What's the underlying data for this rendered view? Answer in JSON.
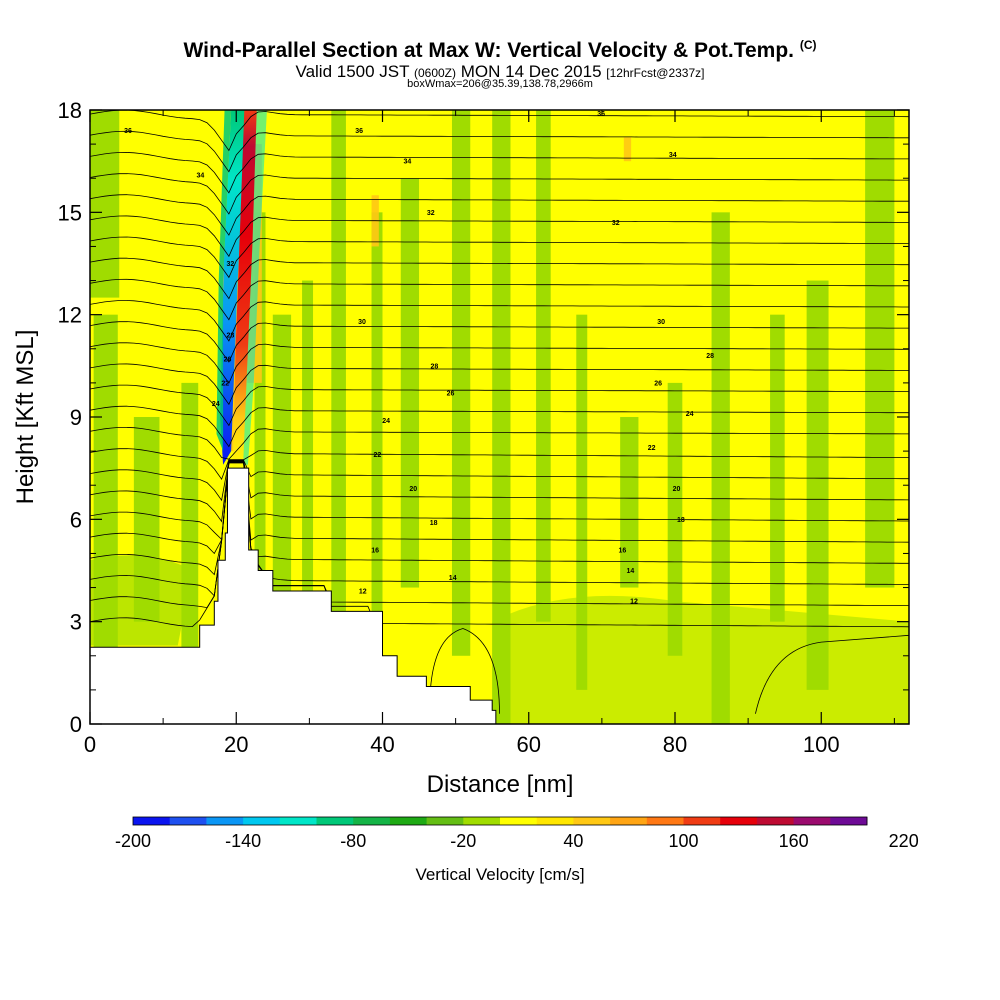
{
  "chart_data": {
    "type": "heatmap",
    "title": "Wind-Parallel Section at Max W: Vertical Velocity & Pot.Temp.",
    "title_mark": "(C)",
    "subtitle_main_a": "Valid 1500 JST",
    "subtitle_small_a": "(0600Z)",
    "subtitle_main_b": "MON 14 Dec 2015",
    "subtitle_small_b": "[12hrFcst@2337z]",
    "subtitle_2": "boxWmax=206@35.39,138.78,2966m",
    "xlabel": "Distance [nm]",
    "ylabel": "Height [Kft MSL]",
    "xlim": [
      0,
      112
    ],
    "ylim": [
      0,
      18
    ],
    "x_ticks": [
      "0",
      "20",
      "40",
      "60",
      "80",
      "100"
    ],
    "y_ticks": [
      "0",
      "3",
      "6",
      "9",
      "12",
      "15",
      "18"
    ],
    "colorbar": {
      "title": "Vertical Velocity [cm/s]",
      "labels": [
        "-200",
        "-140",
        "-80",
        "-20",
        "40",
        "100",
        "160",
        "220"
      ],
      "colors": [
        "#0a14f0",
        "#1e50f0",
        "#0a96f5",
        "#00c8f0",
        "#00e6c8",
        "#00c878",
        "#14b446",
        "#1eaa14",
        "#64be14",
        "#a0dc00",
        "#ffff00",
        "#ffe600",
        "#ffc814",
        "#ffa514",
        "#ff7814",
        "#f03c14",
        "#e6000a",
        "#be0a32",
        "#9b0a6e",
        "#6e0a96"
      ]
    },
    "terrain_profile": [
      [
        0,
        2.25
      ],
      [
        12,
        2.25
      ],
      [
        15,
        2.9
      ],
      [
        17,
        3.6
      ],
      [
        17.5,
        4.8
      ],
      [
        18.5,
        5.6
      ],
      [
        18.8,
        7.5
      ],
      [
        21,
        7.5
      ],
      [
        21.7,
        5.1
      ],
      [
        23,
        4.5
      ],
      [
        25,
        3.9
      ],
      [
        32,
        3.9
      ],
      [
        33,
        3.3
      ],
      [
        38,
        3.3
      ],
      [
        40,
        2.0
      ],
      [
        42,
        1.4
      ],
      [
        46,
        1.1
      ],
      [
        52,
        0.7
      ],
      [
        55,
        0.4
      ],
      [
        55.5,
        0.0
      ]
    ],
    "contour_labels": [
      {
        "x": 5.2,
        "y": 17.4,
        "text": "36"
      },
      {
        "x": 36.8,
        "y": 17.4,
        "text": "36"
      },
      {
        "x": 69.9,
        "y": 17.9,
        "text": "36"
      },
      {
        "x": 15.1,
        "y": 16.1,
        "text": "34"
      },
      {
        "x": 43.4,
        "y": 16.5,
        "text": "34"
      },
      {
        "x": 79.7,
        "y": 16.7,
        "text": "34"
      },
      {
        "x": 46.6,
        "y": 15.0,
        "text": "32"
      },
      {
        "x": 71.9,
        "y": 14.7,
        "text": "32"
      },
      {
        "x": 37.2,
        "y": 11.8,
        "text": "30"
      },
      {
        "x": 78.1,
        "y": 11.8,
        "text": "30"
      },
      {
        "x": 47.1,
        "y": 10.5,
        "text": "28"
      },
      {
        "x": 84.8,
        "y": 10.8,
        "text": "28"
      },
      {
        "x": 49.3,
        "y": 9.7,
        "text": "26"
      },
      {
        "x": 77.7,
        "y": 10.0,
        "text": "26"
      },
      {
        "x": 40.5,
        "y": 8.9,
        "text": "24"
      },
      {
        "x": 82.0,
        "y": 9.1,
        "text": "24"
      },
      {
        "x": 17.2,
        "y": 9.4,
        "text": "24"
      },
      {
        "x": 39.3,
        "y": 7.9,
        "text": "22"
      },
      {
        "x": 76.8,
        "y": 8.1,
        "text": "22"
      },
      {
        "x": 44.2,
        "y": 6.9,
        "text": "20"
      },
      {
        "x": 80.2,
        "y": 6.9,
        "text": "20"
      },
      {
        "x": 47.0,
        "y": 5.9,
        "text": "18"
      },
      {
        "x": 80.8,
        "y": 6.0,
        "text": "18"
      },
      {
        "x": 39.0,
        "y": 5.1,
        "text": "16"
      },
      {
        "x": 72.8,
        "y": 5.1,
        "text": "16"
      },
      {
        "x": 49.6,
        "y": 4.3,
        "text": "14"
      },
      {
        "x": 73.9,
        "y": 4.5,
        "text": "14"
      },
      {
        "x": 37.3,
        "y": 3.9,
        "text": "12"
      },
      {
        "x": 74.4,
        "y": 3.6,
        "text": "12"
      },
      {
        "x": 18.8,
        "y": 10.7,
        "text": "26"
      },
      {
        "x": 19.2,
        "y": 11.4,
        "text": "28"
      },
      {
        "x": 19.2,
        "y": 13.5,
        "text": "32"
      },
      {
        "x": 18.5,
        "y": 10.0,
        "text": "22"
      }
    ]
  }
}
